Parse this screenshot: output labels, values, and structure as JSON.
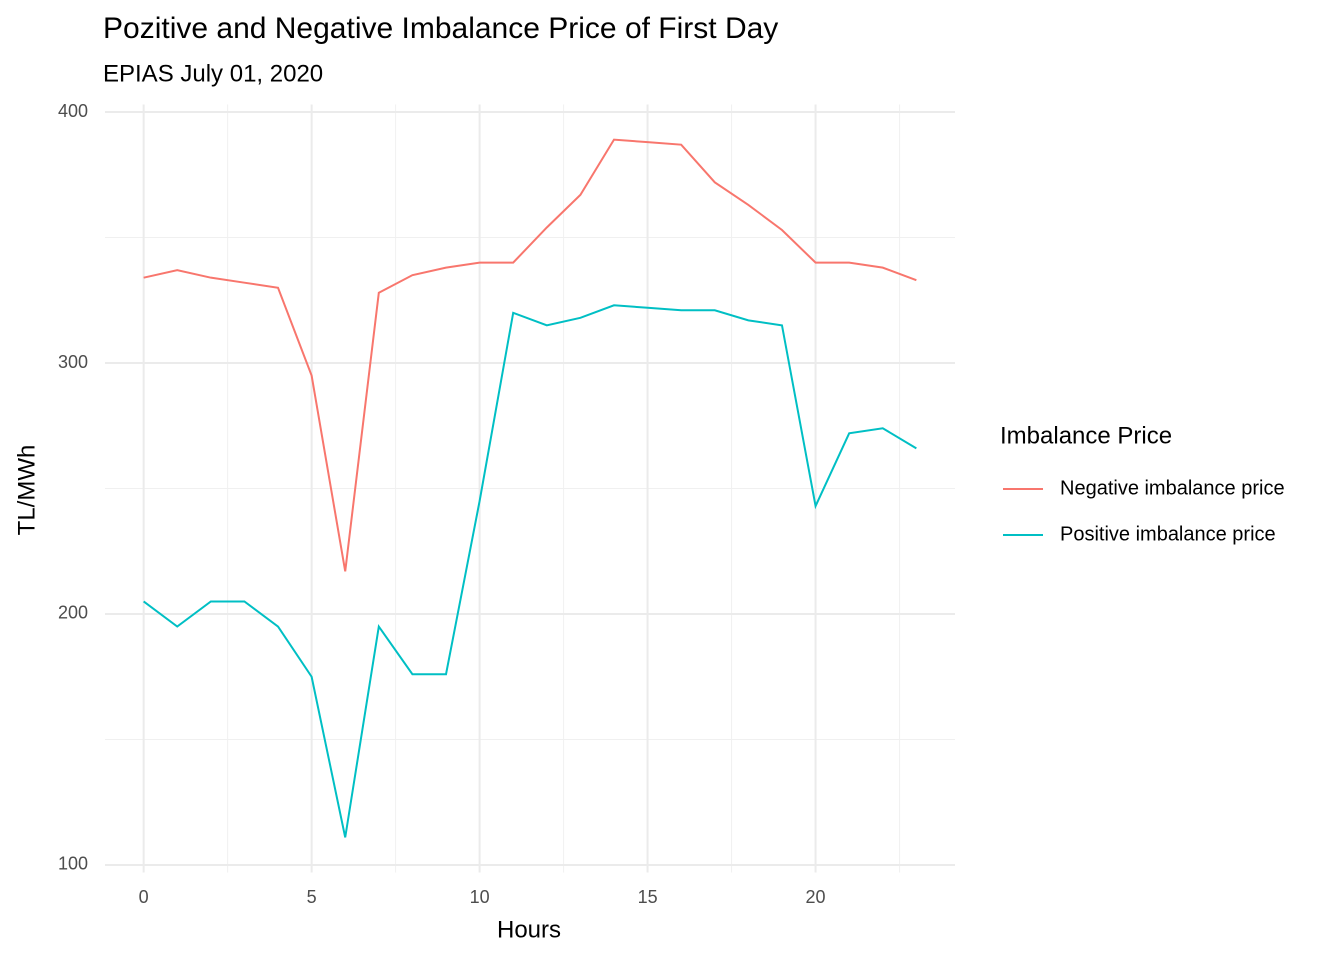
{
  "chart_data": {
    "type": "line",
    "title": "Pozitive and Negative Imbalance Price of First Day",
    "subtitle": "EPIAS July 01, 2020",
    "x_label": "Hours",
    "y_label": "TL/MWh",
    "legend_title": "Imbalance Price",
    "legend_position": "right",
    "x": [
      0,
      1,
      2,
      3,
      4,
      5,
      6,
      7,
      8,
      9,
      10,
      11,
      12,
      13,
      14,
      15,
      16,
      17,
      18,
      19,
      20,
      21,
      22,
      23
    ],
    "series": [
      {
        "name": "Negative imbalance price",
        "color": "#f8766d",
        "values": [
          334,
          337,
          334,
          332,
          330,
          295,
          217,
          328,
          335,
          338,
          340,
          340,
          354,
          367,
          389,
          388,
          387,
          372,
          363,
          353,
          340,
          340,
          338,
          333
        ]
      },
      {
        "name": "Positive imbalance price",
        "color": "#00bfc4",
        "values": [
          205,
          195,
          205,
          205,
          195,
          175,
          111,
          195,
          176,
          176,
          245,
          320,
          315,
          318,
          323,
          322,
          321,
          321,
          317,
          315,
          243,
          272,
          274,
          266
        ]
      }
    ],
    "xlim": [
      -1.15,
      24.15
    ],
    "ylim": [
      97,
      403
    ],
    "xticks": [
      0,
      5,
      10,
      15,
      20
    ],
    "yticks": [
      100,
      200,
      300,
      400
    ],
    "xminor": [
      2.5,
      7.5,
      12.5,
      17.5,
      22.5
    ],
    "yminor": [
      150,
      250,
      350
    ],
    "grid": true
  }
}
